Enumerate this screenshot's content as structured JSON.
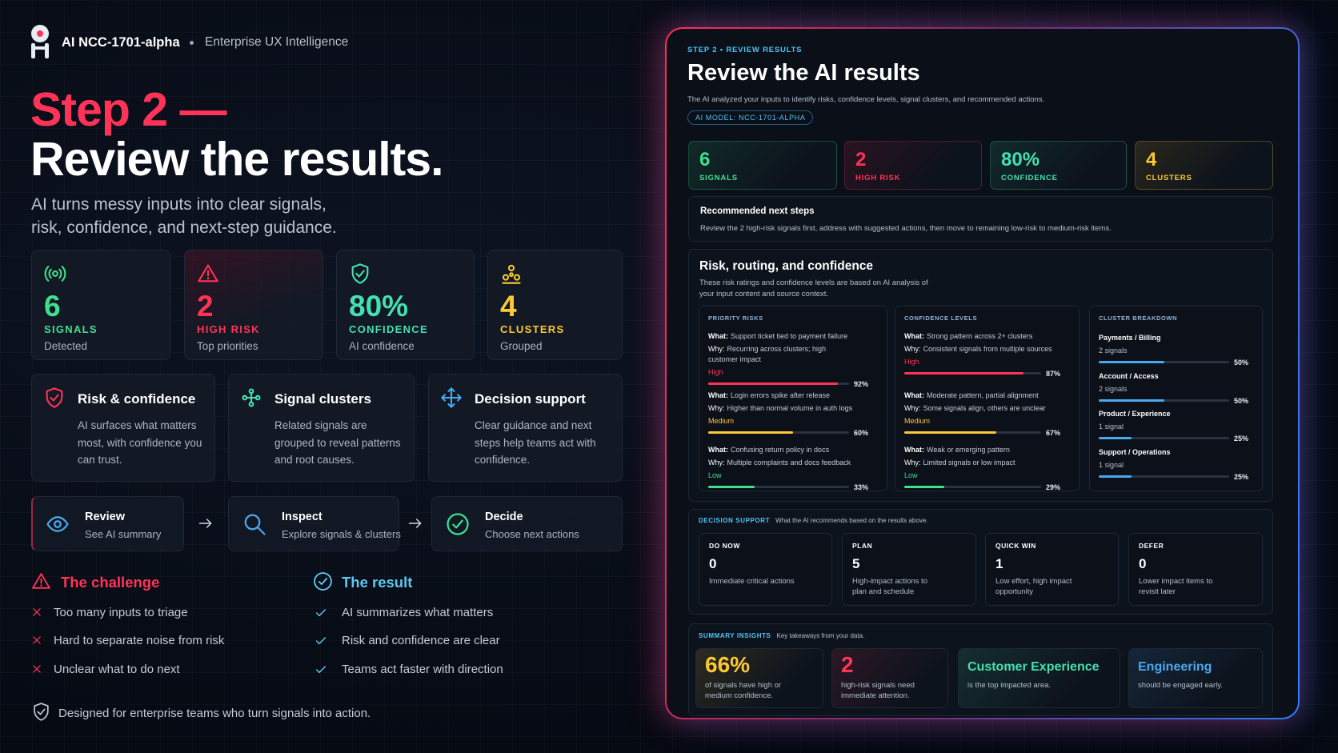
{
  "brand": {
    "name": "AI NCC-1701-alpha",
    "tagline": "Enterprise UX Intelligence"
  },
  "hero": {
    "step": "Step 2 —",
    "title": "Review the results.",
    "subtitle": "AI turns messy inputs into clear signals, risk, confidence, and next-step guidance."
  },
  "stats": [
    {
      "value": "6",
      "label": "SIGNALS",
      "sub": "Detected"
    },
    {
      "value": "2",
      "label": "HIGH RISK",
      "sub": "Top priorities"
    },
    {
      "value": "80%",
      "label": "CONFIDENCE",
      "sub": "AI confidence"
    },
    {
      "value": "4",
      "label": "CLUSTERS",
      "sub": "Grouped"
    }
  ],
  "features": [
    {
      "title": "Risk & confidence",
      "text": "AI surfaces what matters most, with confidence you can trust."
    },
    {
      "title": "Signal clusters",
      "text": "Related signals are grouped to reveal patterns and root causes."
    },
    {
      "title": "Decision support",
      "text": "Clear guidance and next steps help teams act with confidence."
    }
  ],
  "flow": [
    {
      "title": "Review",
      "sub": "See AI summary"
    },
    {
      "title": "Inspect",
      "sub": "Explore signals & clusters"
    },
    {
      "title": "Decide",
      "sub": "Choose next actions"
    }
  ],
  "challenge": {
    "title": "The challenge",
    "items": [
      "Too many inputs to triage",
      "Hard to separate noise from risk",
      "Unclear what to do next"
    ]
  },
  "result": {
    "title": "The result",
    "items": [
      "AI summarizes what matters",
      "Risk and confidence are clear",
      "Teams act faster with direction"
    ]
  },
  "footer": "Designed for enterprise teams who turn signals into action.",
  "panel": {
    "eyebrow": "STEP 2 • REVIEW RESULTS",
    "title": "Review the AI results",
    "desc": "The AI analyzed your inputs to identify risks, confidence levels, signal clusters, and recommended actions.",
    "model": "AI MODEL: NCC-1701-ALPHA",
    "stats": [
      {
        "value": "6",
        "label": "SIGNALS"
      },
      {
        "value": "2",
        "label": "HIGH RISK"
      },
      {
        "value": "80%",
        "label": "CONFIDENCE"
      },
      {
        "value": "4",
        "label": "CLUSTERS"
      }
    ],
    "next": {
      "title": "Recommended next steps",
      "text": "Review the 2 high-risk signals first, address with suggested actions, then move to remaining low-risk to medium-risk items."
    },
    "risk": {
      "title": "Risk, routing, and confidence",
      "desc": "These risk ratings and confidence levels are based on AI analysis of your input content and source context.",
      "what": "What:",
      "why": "Why:",
      "priority": {
        "title": "PRIORITY RISKS",
        "items": [
          {
            "what": "Support ticket tied to payment failure",
            "why": "Recurring across clusters; high customer impact",
            "level": "High",
            "pct": {
              "value": 92,
              "label": "92%"
            }
          },
          {
            "what": "Login errors spike after release",
            "why": "Higher than normal volume in auth logs",
            "level": "Medium",
            "pct": {
              "value": 60,
              "label": "60%"
            }
          },
          {
            "what": "Confusing return policy in docs",
            "why": "Multiple complaints and docs feedback",
            "level": "Low",
            "pct": {
              "value": 33,
              "label": "33%"
            }
          }
        ]
      },
      "confidence": {
        "title": "CONFIDENCE LEVELS",
        "items": [
          {
            "what": "Strong pattern across 2+ clusters",
            "why": "Consistent signals from multiple sources",
            "level": "High",
            "pct": {
              "value": 87,
              "label": "87%"
            }
          },
          {
            "what": "Moderate pattern, partial alignment",
            "why": "Some signals align, others are unclear",
            "level": "Medium",
            "pct": {
              "value": 67,
              "label": "67%"
            }
          },
          {
            "what": "Weak or emerging pattern",
            "why": "Limited signals or low impact",
            "level": "Low",
            "pct": {
              "value": 29,
              "label": "29%"
            }
          }
        ]
      },
      "clusters": {
        "title": "CLUSTER BREAKDOWN",
        "items": [
          {
            "name": "Payments / Billing",
            "count": "2 signals",
            "pct": {
              "value": 50,
              "label": "50%"
            }
          },
          {
            "name": "Account / Access",
            "count": "2 signals",
            "pct": {
              "value": 50,
              "label": "50%"
            }
          },
          {
            "name": "Product / Experience",
            "count": "1 signal",
            "pct": {
              "value": 25,
              "label": "25%"
            }
          },
          {
            "name": "Support / Operations",
            "count": "1 signal",
            "pct": {
              "value": 25,
              "label": "25%"
            }
          }
        ]
      }
    },
    "decision": {
      "title": "DECISION SUPPORT",
      "desc": "What the AI recommends based on the results above.",
      "items": [
        {
          "label": "DO NOW",
          "value": "0",
          "text": "Immediate critical actions"
        },
        {
          "label": "PLAN",
          "value": "5",
          "text": "High-impact actions to plan and schedule"
        },
        {
          "label": "QUICK WIN",
          "value": "1",
          "text": "Low effort, high impact opportunity"
        },
        {
          "label": "DEFER",
          "value": "0",
          "text": "Lower impact items to revisit later"
        }
      ]
    },
    "summary": {
      "title": "SUMMARY INSIGHTS",
      "desc": "Key takeaways from your data.",
      "items": [
        {
          "value": "66%",
          "text": "of signals have high or medium confidence."
        },
        {
          "value": "2",
          "text": "high-risk signals need immediate attention."
        },
        {
          "value": "Customer Experience",
          "text": "is the top impacted area."
        },
        {
          "value": "Engineering",
          "text": "should be engaged early."
        }
      ]
    }
  }
}
